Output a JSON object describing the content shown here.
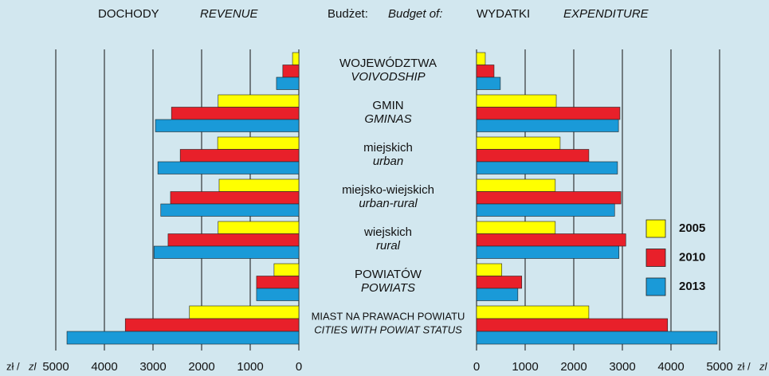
{
  "chart_data": {
    "type": "butterfly",
    "headers": {
      "revenue_pl": "DOCHODY",
      "revenue_en": "REVENUE",
      "budget_pl": "Budżet:",
      "budget_en": "Budget of:",
      "expenditure_pl": "WYDATKI",
      "expenditure_en": "EXPENDITURE"
    },
    "unit_pl": "zł /",
    "unit_en": "zl",
    "categories": [
      {
        "pl": "WOJEWÓDZTWA",
        "en": "VOIVODSHIP"
      },
      {
        "pl": "GMIN",
        "en": "GMINAS"
      },
      {
        "pl": "miejskich",
        "en": "urban"
      },
      {
        "pl": "miejsko-wiejskich",
        "en": "urban-rural"
      },
      {
        "pl": "wiejskich",
        "en": "rural"
      },
      {
        "pl": "POWIATÓW",
        "en": "POWIATS"
      },
      {
        "pl": "MIAST NA PRAWACH POWIATU",
        "en": "CITIES WITH POWIAT STATUS"
      }
    ],
    "series": [
      {
        "name": "2005",
        "color": "#ffff00",
        "revenue": [
          130,
          1660,
          1670,
          1640,
          1660,
          510,
          2250
        ],
        "expenditure": [
          180,
          1640,
          1720,
          1620,
          1620,
          520,
          2310
        ]
      },
      {
        "name": "2010",
        "color": "#e8202a",
        "revenue": [
          330,
          2620,
          2440,
          2640,
          2690,
          870,
          3570
        ],
        "expenditure": [
          360,
          2950,
          2310,
          2970,
          3070,
          930,
          3930
        ]
      },
      {
        "name": "2013",
        "color": "#1a9ad8",
        "revenue": [
          460,
          2950,
          2900,
          2840,
          2980,
          870,
          4770
        ],
        "expenditure": [
          490,
          2920,
          2900,
          2840,
          2930,
          850,
          4950
        ]
      }
    ],
    "xlim": [
      0,
      5000
    ],
    "xticks": [
      0,
      1000,
      2000,
      3000,
      4000,
      5000
    ],
    "grid": true
  }
}
